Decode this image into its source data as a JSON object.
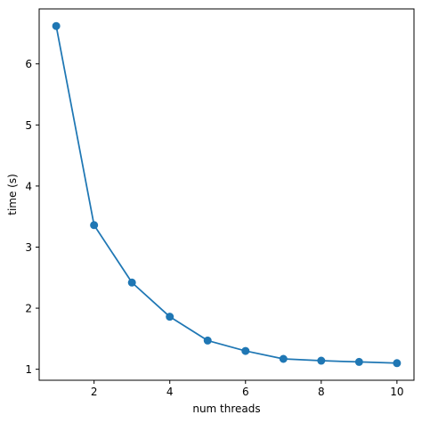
{
  "chart_data": {
    "type": "line",
    "title": "",
    "xlabel": "num threads",
    "ylabel": "time (s)",
    "x": [
      1,
      2,
      3,
      4,
      5,
      6,
      7,
      8,
      9,
      10
    ],
    "series": [
      {
        "values": [
          6.62,
          3.36,
          2.42,
          1.86,
          1.47,
          1.3,
          1.17,
          1.14,
          1.12,
          1.1
        ]
      }
    ],
    "xlim": [
      0.55,
      10.45
    ],
    "ylim": [
      0.82,
      6.9
    ],
    "xticks": [
      2,
      4,
      6,
      8,
      10
    ],
    "xtick_labels": [
      "2",
      "4",
      "6",
      "8",
      "10"
    ],
    "yticks": [
      1,
      2,
      3,
      4,
      5,
      6
    ],
    "ytick_labels": [
      "1",
      "2",
      "3",
      "4",
      "5",
      "6"
    ],
    "grid": false,
    "legend": "none",
    "line_color": "#1f77b4",
    "marker": "circle"
  }
}
